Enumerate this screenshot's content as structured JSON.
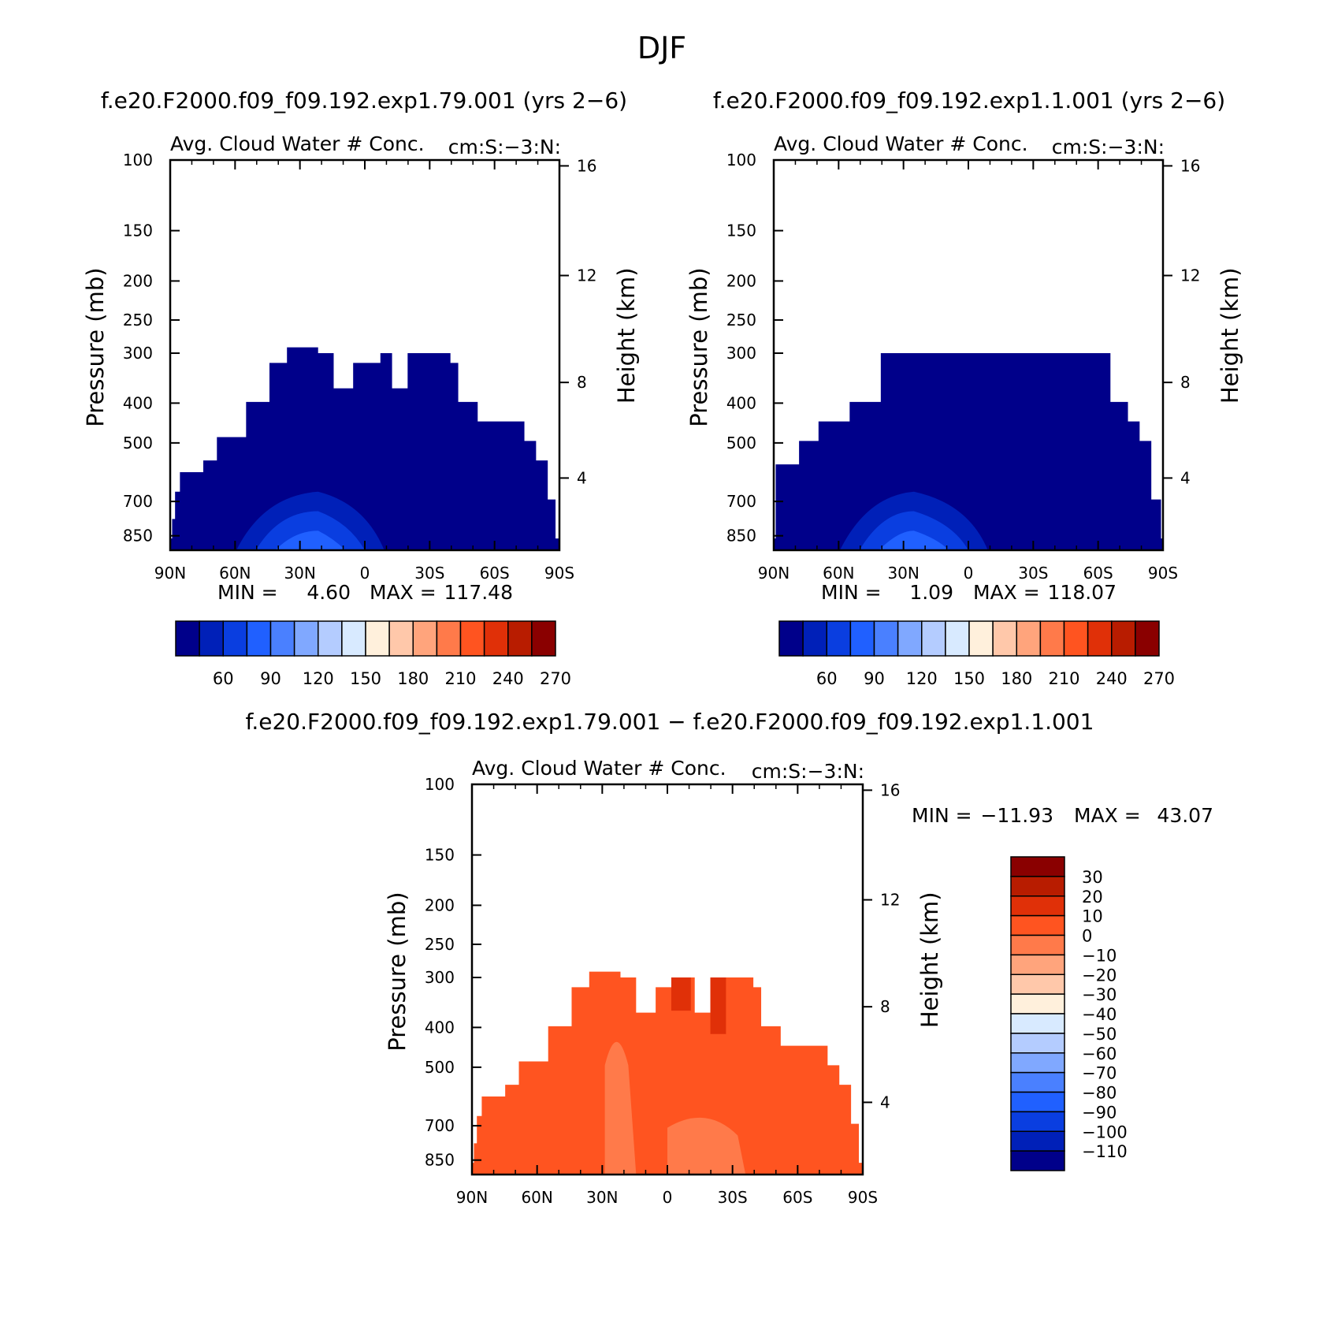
{
  "figure_title": "DJF",
  "chart_data": [
    {
      "type": "heatmap",
      "title": "f.e20.F2000.f09_f09.192.exp1.79.001 (yrs 2−6)",
      "subtitle_left": "Avg. Cloud Water # Conc.",
      "subtitle_right": "cm:S:−3:N:",
      "ylabel": "Pressure (mb)",
      "ylabel_right": "Height (km)",
      "x_ticks": [
        "90N",
        "60N",
        "30N",
        "0",
        "30S",
        "60S",
        "90S"
      ],
      "y_ticks": [
        "100",
        "150",
        "200",
        "250",
        "300",
        "400",
        "500",
        "700",
        "850"
      ],
      "y_right_ticks": [
        "16",
        "12",
        "8",
        "4"
      ],
      "stats": {
        "min_label": "MIN =",
        "min": "4.60",
        "max_label": "MAX =",
        "max": "117.48"
      },
      "colorbar_labels": [
        "60",
        "90",
        "120",
        "150",
        "180",
        "210",
        "240",
        "270"
      ],
      "fill_color": "#00008a"
    },
    {
      "type": "heatmap",
      "title": "f.e20.F2000.f09_f09.192.exp1.1.001 (yrs 2−6)",
      "subtitle_left": "Avg. Cloud Water # Conc.",
      "subtitle_right": "cm:S:−3:N:",
      "ylabel": "Pressure (mb)",
      "ylabel_right": "Height (km)",
      "x_ticks": [
        "90N",
        "60N",
        "30N",
        "0",
        "30S",
        "60S",
        "90S"
      ],
      "y_ticks": [
        "100",
        "150",
        "200",
        "250",
        "300",
        "400",
        "500",
        "700",
        "850"
      ],
      "y_right_ticks": [
        "16",
        "12",
        "8",
        "4"
      ],
      "stats": {
        "min_label": "MIN =",
        "min": "1.09",
        "max_label": "MAX =",
        "max": "118.07"
      },
      "colorbar_labels": [
        "60",
        "90",
        "120",
        "150",
        "180",
        "210",
        "240",
        "270"
      ],
      "fill_color": "#00008a"
    },
    {
      "type": "heatmap",
      "title": "f.e20.F2000.f09_f09.192.exp1.79.001 − f.e20.F2000.f09_f09.192.exp1.1.001",
      "subtitle_left": "Avg. Cloud Water # Conc.",
      "subtitle_right": "cm:S:−3:N:",
      "ylabel": "Pressure (mb)",
      "ylabel_right": "Height (km)",
      "x_ticks": [
        "90N",
        "60N",
        "30N",
        "0",
        "30S",
        "60S",
        "90S"
      ],
      "y_ticks": [
        "100",
        "150",
        "200",
        "250",
        "300",
        "400",
        "500",
        "700",
        "850"
      ],
      "y_right_ticks": [
        "16",
        "12",
        "8",
        "4"
      ],
      "stats": {
        "min_label": "MIN =",
        "min": "−11.93",
        "max_label": "MAX =",
        "max": "43.07"
      },
      "colorbar_labels": [
        "30",
        "20",
        "10",
        "0",
        "−10",
        "−20",
        "−30",
        "−40",
        "−50",
        "−60",
        "−70",
        "−80",
        "−90",
        "−100",
        "−110"
      ],
      "fill_color": "#ff5420"
    }
  ],
  "colors": {
    "abs_scale": [
      "#00008a",
      "#0020b8",
      "#0a3ee0",
      "#2060ff",
      "#4a80ff",
      "#80a8ff",
      "#b4ccff",
      "#d8eaff",
      "#fff0dc",
      "#ffc8aa",
      "#ffa47c",
      "#ff7a4a",
      "#ff5420",
      "#e03008",
      "#b81c00",
      "#8a0000"
    ],
    "diff_scale_top_down": [
      "#8a0000",
      "#b81c00",
      "#e03008",
      "#ff5420",
      "#ff7a4a",
      "#ffa47c",
      "#ffc8aa",
      "#fff0dc",
      "#d8eaff",
      "#b4ccff",
      "#80a8ff",
      "#4a80ff",
      "#2060ff",
      "#0a3ee0",
      "#0020b8",
      "#00008a"
    ]
  }
}
